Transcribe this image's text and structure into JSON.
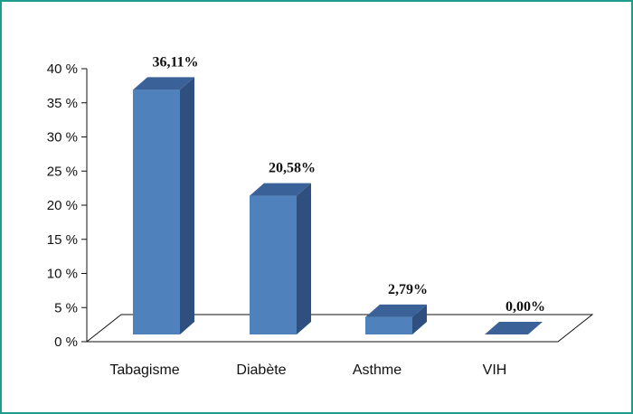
{
  "chart_data": {
    "type": "bar",
    "categories": [
      "Tabagisme",
      "Diabète",
      "Asthme",
      "VIH"
    ],
    "values": [
      36.11,
      20.58,
      2.79,
      0.0
    ],
    "data_labels": [
      "36,11%",
      "20,58%",
      "2,79%",
      "0,00%"
    ],
    "y_ticks": [
      0,
      5,
      10,
      15,
      20,
      25,
      30,
      35,
      40
    ],
    "y_tick_labels": [
      "0 %",
      "5 %",
      "10 %",
      "15 %",
      "20 %",
      "25 %",
      "30 %",
      "35 %",
      "40 %"
    ],
    "ylim": [
      0,
      40
    ],
    "grid": false,
    "legend": "none",
    "style": "3d",
    "colors": {
      "bar_front": "#4f81bd",
      "bar_side": "#2f4f7f",
      "bar_top": "#3a6299",
      "frame": "#1f9c8c"
    }
  }
}
